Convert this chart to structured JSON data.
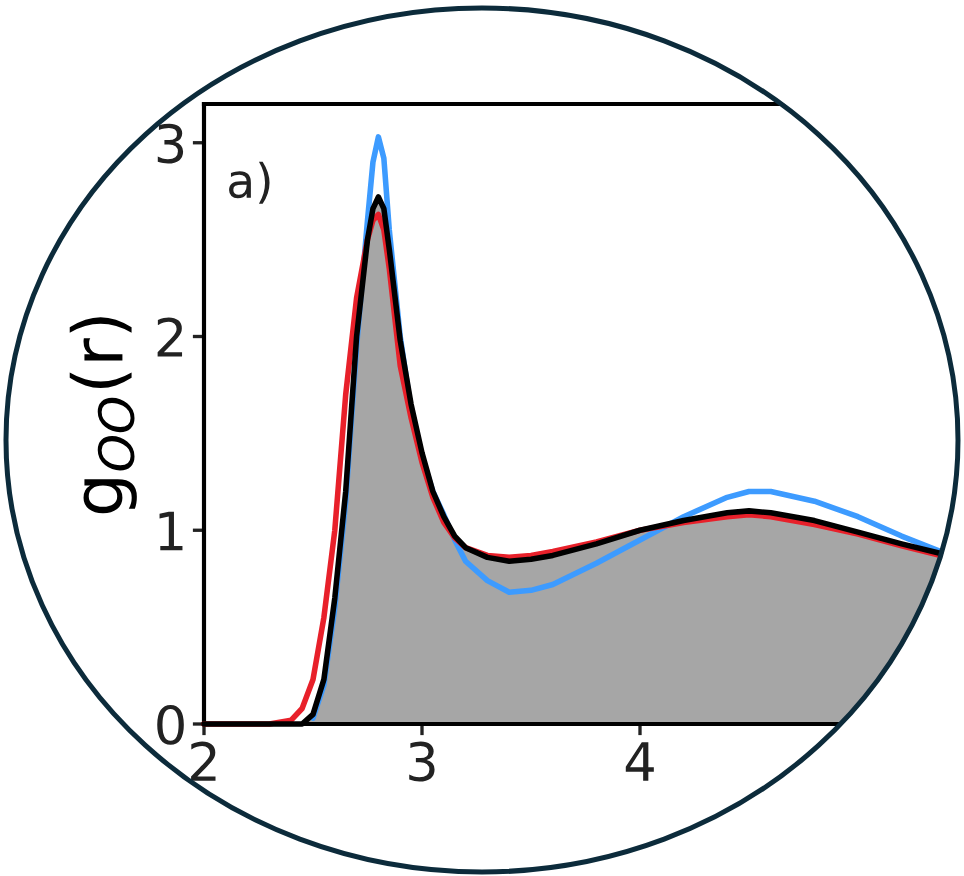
{
  "chart_data": {
    "type": "line",
    "ylabel": "g$_{OO}$(r)",
    "annotations": [
      "a)"
    ],
    "x": [
      2.0,
      2.3,
      2.4,
      2.45,
      2.5,
      2.55,
      2.6,
      2.65,
      2.7,
      2.75,
      2.775,
      2.8,
      2.825,
      2.85,
      2.9,
      2.95,
      3.0,
      3.05,
      3.1,
      3.15,
      3.2,
      3.3,
      3.4,
      3.5,
      3.6,
      3.8,
      4.0,
      4.2,
      4.4,
      4.5,
      4.6,
      4.8,
      5.0,
      5.2,
      5.38
    ],
    "xlim": [
      2,
      5.4
    ],
    "ylim": [
      0,
      3.2
    ],
    "xticks": [
      2,
      3,
      4
    ],
    "yticks": [
      0,
      1,
      2,
      3
    ],
    "series": [
      {
        "type": "area",
        "color": "#a6a6a6",
        "x": [
          2.45,
          2.5,
          2.55,
          2.6,
          2.65,
          2.7,
          2.75,
          2.775,
          2.8,
          2.825,
          2.85,
          2.9,
          2.95,
          3.0,
          3.05,
          3.1,
          3.15,
          3.2,
          3.3,
          3.4,
          3.6,
          3.8,
          4.0,
          4.2,
          4.4,
          4.6,
          4.8,
          5.0,
          5.2,
          5.38
        ],
        "values": [
          0,
          0.05,
          0.23,
          0.65,
          1.2,
          2.0,
          2.5,
          2.66,
          2.72,
          2.66,
          2.45,
          1.98,
          1.65,
          1.4,
          1.2,
          1.07,
          0.97,
          0.91,
          0.86,
          0.84,
          0.87,
          0.93,
          1.0,
          1.05,
          1.09,
          1.09,
          1.05,
          0.99,
          0.93,
          0.88
        ]
      },
      {
        "color": "#3d9bff",
        "values": [
          null,
          null,
          null,
          null,
          0.03,
          0.2,
          0.6,
          1.15,
          1.95,
          2.6,
          2.9,
          3.03,
          2.92,
          2.55,
          2.0,
          1.62,
          1.38,
          1.2,
          1.08,
          0.95,
          0.84,
          0.74,
          0.68,
          0.69,
          0.72,
          0.83,
          0.95,
          1.07,
          1.17,
          1.2,
          1.2,
          1.15,
          1.07,
          0.97,
          0.89
        ]
      },
      {
        "color": "#e8202a",
        "values": [
          0,
          0,
          0.02,
          0.08,
          0.23,
          0.55,
          1.0,
          1.7,
          2.2,
          2.5,
          2.6,
          2.63,
          2.55,
          2.35,
          1.85,
          1.58,
          1.35,
          1.17,
          1.04,
          0.96,
          0.91,
          0.87,
          0.86,
          0.87,
          0.89,
          0.94,
          1.0,
          1.04,
          1.07,
          1.08,
          1.07,
          1.03,
          0.98,
          0.92,
          0.87
        ]
      },
      {
        "color": "#000000",
        "values": [
          0,
          0,
          0,
          0,
          0.05,
          0.23,
          0.65,
          1.2,
          2.0,
          2.5,
          2.66,
          2.72,
          2.66,
          2.45,
          1.98,
          1.65,
          1.4,
          1.2,
          1.07,
          0.97,
          0.91,
          0.86,
          0.84,
          0.85,
          0.87,
          0.93,
          1.0,
          1.05,
          1.09,
          1.1,
          1.09,
          1.05,
          0.99,
          0.93,
          0.88
        ]
      }
    ]
  }
}
